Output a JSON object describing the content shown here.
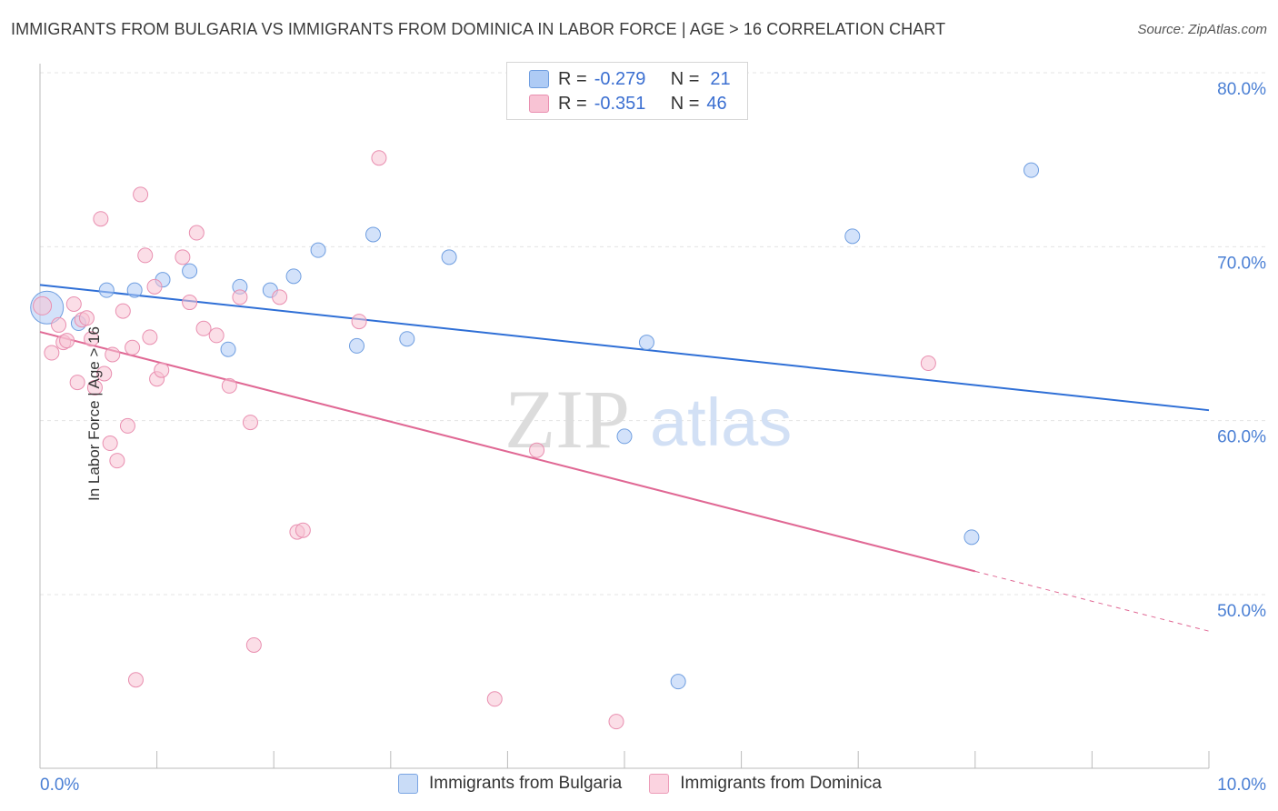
{
  "title": "IMMIGRANTS FROM BULGARIA VS IMMIGRANTS FROM DOMINICA IN LABOR FORCE | AGE > 16 CORRELATION CHART",
  "source": "Source: ZipAtlas.com",
  "watermark": {
    "zip": "ZIP",
    "atlas": "atlas"
  },
  "legend": {
    "r_label": "R =",
    "n_label": "N =",
    "rows": [
      {
        "r": "-0.279",
        "n": "21",
        "color": "#aecbf5",
        "border": "#6f9ee0"
      },
      {
        "r": "-0.351",
        "n": "46",
        "color": "#f8c3d4",
        "border": "#e98fb0"
      }
    ]
  },
  "bottom_legend": [
    {
      "label": "Immigrants from Bulgaria",
      "color": "#c9dcf7",
      "border": "#7aa5e3"
    },
    {
      "label": "Immigrants from Dominica",
      "color": "#fbd3e0",
      "border": "#ec9cb8"
    }
  ],
  "chart_data": {
    "type": "scatter",
    "title": "IMMIGRANTS FROM BULGARIA VS IMMIGRANTS FROM DOMINICA IN LABOR FORCE | AGE > 16 CORRELATION CHART",
    "xlabel": "",
    "ylabel": "In Labor Force | Age > 16",
    "xlim": [
      0,
      10
    ],
    "ylim": [
      41,
      82
    ],
    "x_tick_labels": [
      {
        "value": 0,
        "label": "0.0%"
      },
      {
        "value": 10,
        "label": "10.0%"
      }
    ],
    "x_minor_ticks": [
      1,
      2,
      3,
      4,
      5,
      6,
      7,
      8,
      9,
      10
    ],
    "y_ticks": [
      {
        "value": 50,
        "label": "50.0%"
      },
      {
        "value": 60,
        "label": "60.0%"
      },
      {
        "value": 70,
        "label": "70.0%"
      },
      {
        "value": 80,
        "label": "80.0%"
      }
    ],
    "series": [
      {
        "name": "Immigrants from Bulgaria",
        "fill": "#aecbf5",
        "stroke": "#6f9ee0",
        "trend": {
          "x0": 0,
          "y0": 67.8,
          "x1": 10,
          "y1": 60.6,
          "dash_from": null,
          "color": "#2f6fd6"
        },
        "points": [
          [
            0.06,
            66.5,
            18
          ],
          [
            0.33,
            65.6,
            8
          ],
          [
            0.57,
            67.5,
            8
          ],
          [
            0.81,
            67.5,
            8
          ],
          [
            1.05,
            68.1,
            8
          ],
          [
            1.28,
            68.6,
            8
          ],
          [
            1.61,
            64.1,
            8
          ],
          [
            1.71,
            67.7,
            8
          ],
          [
            1.97,
            67.5,
            8
          ],
          [
            2.17,
            68.3,
            8
          ],
          [
            2.38,
            69.8,
            8
          ],
          [
            2.71,
            64.3,
            8
          ],
          [
            2.85,
            70.7,
            8
          ],
          [
            3.14,
            64.7,
            8
          ],
          [
            3.5,
            69.4,
            8
          ],
          [
            5.0,
            59.1,
            8
          ],
          [
            5.19,
            64.5,
            8
          ],
          [
            5.46,
            45.0,
            8
          ],
          [
            6.95,
            70.6,
            8
          ],
          [
            7.97,
            53.3,
            8
          ],
          [
            8.48,
            74.4,
            8
          ]
        ]
      },
      {
        "name": "Immigrants from Dominica",
        "fill": "#f8c3d4",
        "stroke": "#e98fb0",
        "trend": {
          "x0": 0,
          "y0": 65.1,
          "x1": 10,
          "y1": 47.9,
          "dash_from": 8.0,
          "color": "#e06894"
        },
        "points": [
          [
            0.02,
            66.6,
            10
          ],
          [
            0.1,
            63.9,
            8
          ],
          [
            0.16,
            65.5,
            8
          ],
          [
            0.2,
            64.5,
            8
          ],
          [
            0.23,
            64.6,
            8
          ],
          [
            0.29,
            66.7,
            8
          ],
          [
            0.32,
            62.2,
            8
          ],
          [
            0.36,
            65.8,
            8
          ],
          [
            0.4,
            65.9,
            8
          ],
          [
            0.44,
            64.7,
            8
          ],
          [
            0.47,
            61.9,
            8
          ],
          [
            0.52,
            71.6,
            8
          ],
          [
            0.55,
            62.7,
            8
          ],
          [
            0.6,
            58.7,
            8
          ],
          [
            0.62,
            63.8,
            8
          ],
          [
            0.66,
            57.7,
            8
          ],
          [
            0.71,
            66.3,
            8
          ],
          [
            0.75,
            59.7,
            8
          ],
          [
            0.79,
            64.2,
            8
          ],
          [
            0.82,
            45.1,
            8
          ],
          [
            0.86,
            73.0,
            8
          ],
          [
            0.9,
            69.5,
            8
          ],
          [
            0.94,
            64.8,
            8
          ],
          [
            0.98,
            67.7,
            8
          ],
          [
            1.0,
            62.4,
            8
          ],
          [
            1.04,
            62.9,
            8
          ],
          [
            1.22,
            69.4,
            8
          ],
          [
            1.28,
            66.8,
            8
          ],
          [
            1.34,
            70.8,
            8
          ],
          [
            1.4,
            65.3,
            8
          ],
          [
            1.51,
            64.9,
            8
          ],
          [
            1.62,
            62.0,
            8
          ],
          [
            1.71,
            67.1,
            8
          ],
          [
            1.8,
            59.9,
            8
          ],
          [
            1.83,
            47.1,
            8
          ],
          [
            2.05,
            67.1,
            8
          ],
          [
            2.2,
            53.6,
            8
          ],
          [
            2.25,
            53.7,
            8
          ],
          [
            2.73,
            65.7,
            8
          ],
          [
            2.9,
            75.1,
            8
          ],
          [
            3.89,
            44.0,
            8
          ],
          [
            4.25,
            58.3,
            8
          ],
          [
            4.93,
            42.7,
            8
          ],
          [
            7.6,
            63.3,
            8
          ]
        ]
      }
    ]
  }
}
